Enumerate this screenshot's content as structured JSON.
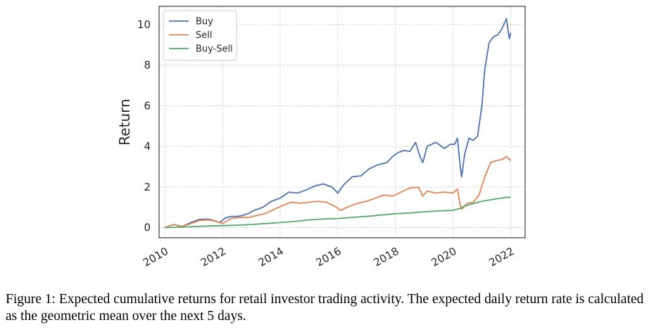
{
  "chart_data": {
    "type": "line",
    "title": "",
    "xlabel": "",
    "ylabel": "Return",
    "xlim": [
      2009.8,
      2022.5
    ],
    "ylim": [
      -0.5,
      10.9
    ],
    "xticks": [
      2010,
      2012,
      2014,
      2016,
      2018,
      2020,
      2022
    ],
    "xtick_labels": [
      "2010",
      "2012",
      "2014",
      "2016",
      "2018",
      "2020",
      "2022"
    ],
    "yticks": [
      0,
      2,
      4,
      6,
      8,
      10
    ],
    "ytick_labels": [
      "0",
      "2",
      "4",
      "6",
      "8",
      "10"
    ],
    "grid": true,
    "legend_position": "top-left",
    "series": [
      {
        "name": "Buy",
        "color": "#4c72b0",
        "x": [
          2010.0,
          2010.3,
          2010.6,
          2010.9,
          2011.2,
          2011.5,
          2011.7,
          2011.9,
          2012.1,
          2012.3,
          2012.5,
          2012.7,
          2012.9,
          2013.1,
          2013.4,
          2013.7,
          2014.0,
          2014.3,
          2014.6,
          2014.9,
          2015.2,
          2015.5,
          2015.8,
          2016.0,
          2016.2,
          2016.5,
          2016.8,
          2017.1,
          2017.4,
          2017.7,
          2017.9,
          2018.1,
          2018.3,
          2018.5,
          2018.7,
          2018.85,
          2018.95,
          2019.1,
          2019.4,
          2019.7,
          2019.9,
          2020.05,
          2020.15,
          2020.25,
          2020.3,
          2020.4,
          2020.55,
          2020.7,
          2020.85,
          2021.0,
          2021.1,
          2021.25,
          2021.4,
          2021.55,
          2021.7,
          2021.85,
          2021.95,
          2022.0
        ],
        "values": [
          0.0,
          0.15,
          0.05,
          0.25,
          0.4,
          0.42,
          0.35,
          0.25,
          0.48,
          0.55,
          0.55,
          0.6,
          0.7,
          0.85,
          1.0,
          1.3,
          1.45,
          1.75,
          1.7,
          1.85,
          2.05,
          2.15,
          2.0,
          1.7,
          2.1,
          2.5,
          2.55,
          2.9,
          3.1,
          3.2,
          3.5,
          3.7,
          3.8,
          3.75,
          4.2,
          3.5,
          3.2,
          4.0,
          4.2,
          3.9,
          4.1,
          4.1,
          4.4,
          3.0,
          2.5,
          3.6,
          4.4,
          4.3,
          4.5,
          6.0,
          7.8,
          9.1,
          9.4,
          9.5,
          9.8,
          10.3,
          9.3,
          9.6
        ]
      },
      {
        "name": "Sell",
        "color": "#dd8452",
        "x": [
          2010.0,
          2010.3,
          2010.6,
          2010.9,
          2011.2,
          2011.5,
          2011.8,
          2012.0,
          2012.3,
          2012.6,
          2012.9,
          2013.2,
          2013.5,
          2013.8,
          2014.1,
          2014.4,
          2014.7,
          2015.0,
          2015.3,
          2015.6,
          2015.9,
          2016.1,
          2016.4,
          2016.7,
          2017.0,
          2017.3,
          2017.6,
          2017.9,
          2018.2,
          2018.5,
          2018.8,
          2018.95,
          2019.1,
          2019.4,
          2019.7,
          2020.0,
          2020.15,
          2020.25,
          2020.3,
          2020.5,
          2020.7,
          2020.9,
          2021.1,
          2021.3,
          2021.5,
          2021.7,
          2021.85,
          2022.0
        ],
        "values": [
          0.0,
          0.15,
          0.05,
          0.2,
          0.35,
          0.38,
          0.3,
          0.2,
          0.45,
          0.5,
          0.5,
          0.6,
          0.7,
          0.9,
          1.1,
          1.25,
          1.2,
          1.25,
          1.3,
          1.25,
          1.05,
          0.85,
          1.05,
          1.2,
          1.3,
          1.45,
          1.6,
          1.55,
          1.75,
          1.95,
          2.0,
          1.55,
          1.8,
          1.7,
          1.75,
          1.7,
          1.9,
          1.1,
          0.9,
          1.2,
          1.25,
          1.6,
          2.5,
          3.2,
          3.3,
          3.35,
          3.5,
          3.3
        ]
      },
      {
        "name": "Buy-Sell",
        "color": "#55a868",
        "x": [
          2010.0,
          2010.5,
          2011.0,
          2011.5,
          2012.0,
          2012.5,
          2013.0,
          2013.5,
          2014.0,
          2014.5,
          2015.0,
          2015.5,
          2016.0,
          2016.5,
          2017.0,
          2017.5,
          2018.0,
          2018.5,
          2019.0,
          2019.5,
          2020.0,
          2020.25,
          2020.3,
          2020.5,
          2021.0,
          2021.5,
          2021.8,
          2022.0
        ],
        "values": [
          0.0,
          0.02,
          0.05,
          0.08,
          0.1,
          0.12,
          0.15,
          0.2,
          0.25,
          0.3,
          0.38,
          0.42,
          0.45,
          0.5,
          0.55,
          0.62,
          0.68,
          0.72,
          0.78,
          0.82,
          0.85,
          0.95,
          1.0,
          1.1,
          1.3,
          1.42,
          1.48,
          1.5
        ]
      }
    ]
  },
  "caption": {
    "text": "Figure 1:  Expected cumulative returns for retail investor trading activity.  The expected daily return rate is calculated as the geometric mean over the next 5 days."
  }
}
